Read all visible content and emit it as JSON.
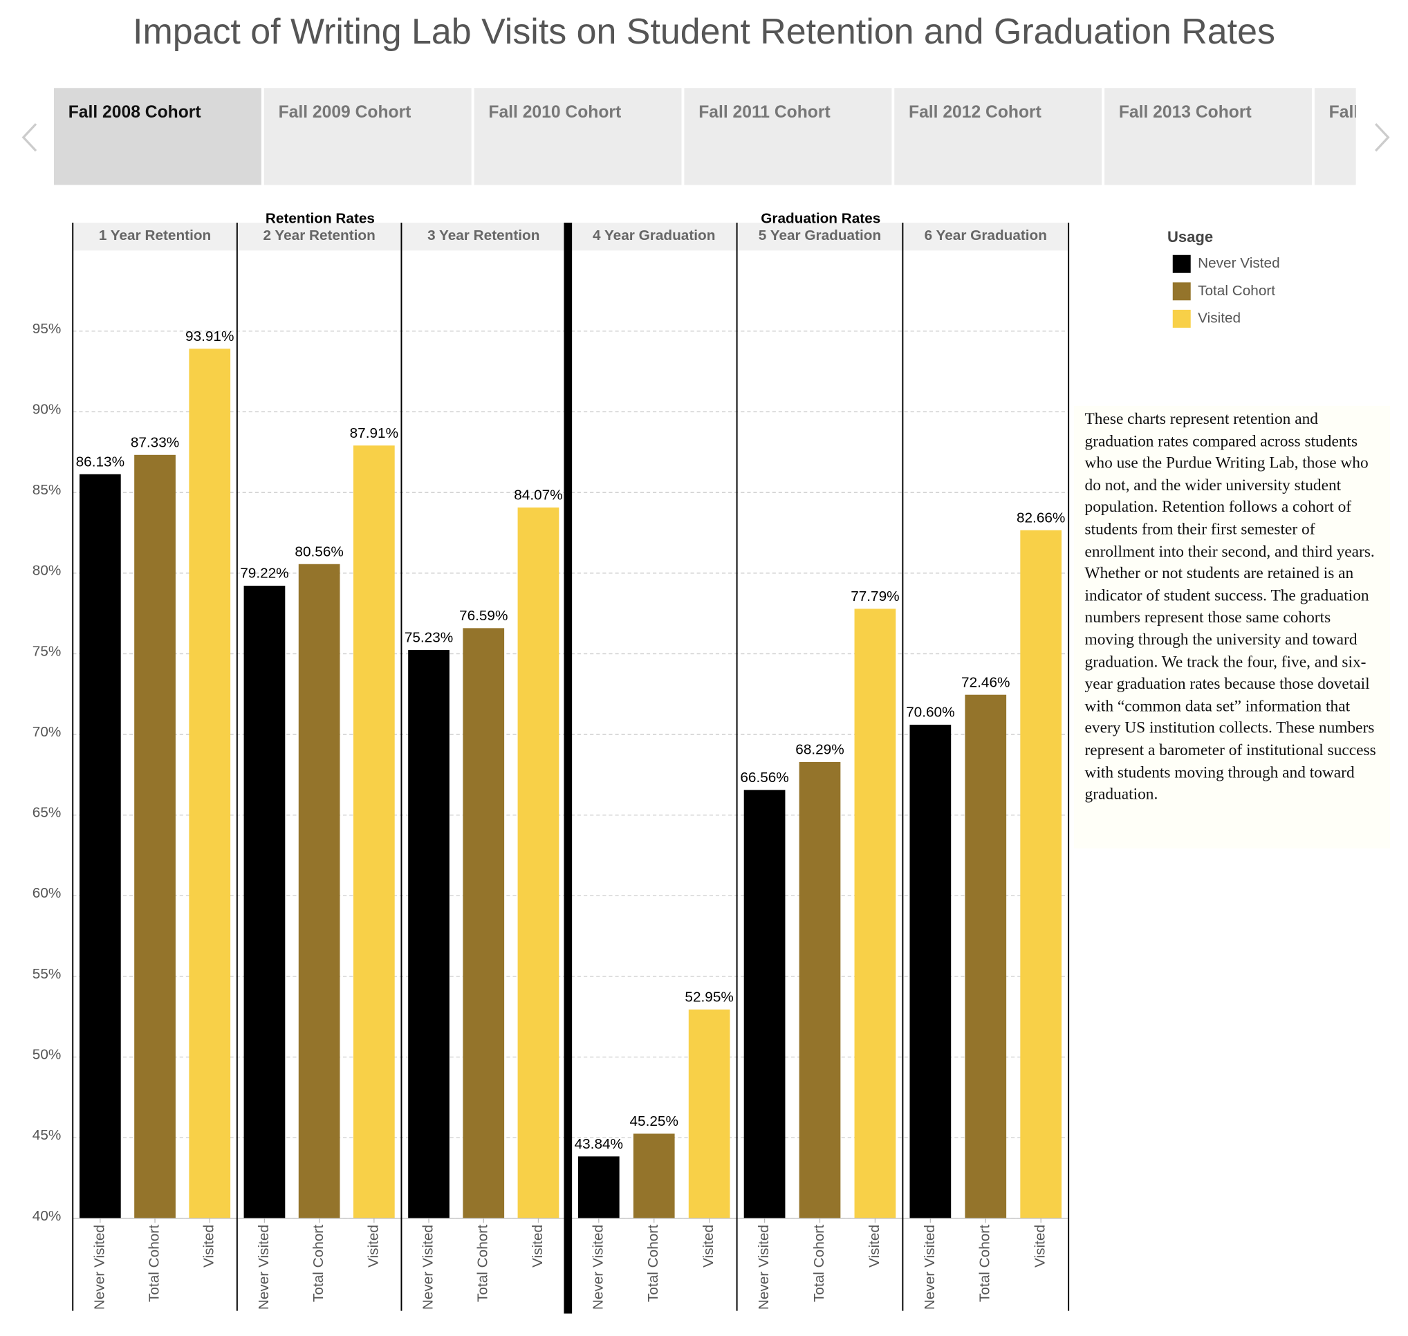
{
  "title": "Impact of Writing Lab Visits on Student Retention and Graduation Rates",
  "tabs": [
    "Fall 2008 Cohort",
    "Fall 2009 Cohort",
    "Fall 2010 Cohort",
    "Fall 2011 Cohort",
    "Fall 2012 Cohort",
    "Fall 2013 Cohort",
    "Fall"
  ],
  "legend": {
    "title": "Usage"
  },
  "description": "These charts represent retention and graduation rates compared across students who use the Purdue Writing Lab, those who do not, and the wider university student population. Retention follows a cohort of students from their first semester of enrollment into their second, and third years. Whether or not students are retained is an indicator of student success. The graduation numbers represent those same cohorts moving through the university and toward graduation. We track the four, five, and six-year graduation rates because those dovetail with “common data set” information that every US institution collects. These numbers represent a barometer of institutional success with students moving through and toward graduation.",
  "chart_data": [
    {
      "type": "bar",
      "title": "Retention Rates",
      "panels": [
        "1 Year Retention",
        "2 Year Retention",
        "3 Year Retention"
      ],
      "categories": [
        "Never Visited",
        "Total Cohort",
        "Visited"
      ],
      "series": [
        {
          "name": "Never Visted",
          "color": "#000000",
          "values": [
            86.13,
            79.22,
            75.23
          ],
          "value_labels": [
            "86.13%",
            "79.22%",
            "75.23%"
          ]
        },
        {
          "name": "Total Cohort",
          "color": "#94742b",
          "values": [
            87.33,
            80.56,
            76.59
          ],
          "value_labels": [
            "87.33%",
            "80.56%",
            "76.59%"
          ]
        },
        {
          "name": "Visited",
          "color": "#f8d048",
          "values": [
            93.91,
            87.91,
            84.07
          ],
          "value_labels": [
            "93.91%",
            "87.91%",
            "84.07%"
          ]
        }
      ],
      "ylim": [
        40,
        100
      ],
      "yticks": [
        {
          "value": 40,
          "label": "40%"
        },
        {
          "value": 45,
          "label": "45%"
        },
        {
          "value": 50,
          "label": "50%"
        },
        {
          "value": 55,
          "label": "55%"
        },
        {
          "value": 60,
          "label": "60%"
        },
        {
          "value": 65,
          "label": "65%"
        },
        {
          "value": 70,
          "label": "70%"
        },
        {
          "value": 75,
          "label": "75%"
        },
        {
          "value": 80,
          "label": "80%"
        },
        {
          "value": 85,
          "label": "85%"
        },
        {
          "value": 90,
          "label": "90%"
        },
        {
          "value": 95,
          "label": "95%"
        }
      ],
      "grid": true
    },
    {
      "type": "bar",
      "title": "Graduation Rates",
      "panels": [
        "4 Year Graduation",
        "5 Year Graduation",
        "6 Year Graduation"
      ],
      "categories": [
        "Never Visited",
        "Total Cohort",
        "Visited"
      ],
      "series": [
        {
          "name": "Never Visted",
          "color": "#000000",
          "values": [
            43.84,
            66.56,
            70.6
          ],
          "value_labels": [
            "43.84%",
            "66.56%",
            "70.60%"
          ]
        },
        {
          "name": "Total Cohort",
          "color": "#94742b",
          "values": [
            45.25,
            68.29,
            72.46
          ],
          "value_labels": [
            "45.25%",
            "68.29%",
            "72.46%"
          ]
        },
        {
          "name": "Visited",
          "color": "#f8d048",
          "values": [
            52.95,
            77.79,
            82.66
          ],
          "value_labels": [
            "52.95%",
            "77.79%",
            "82.66%"
          ]
        }
      ],
      "ylim": [
        40,
        100
      ],
      "yticks": [
        {
          "value": 40,
          "label": "40%"
        },
        {
          "value": 45,
          "label": "45%"
        },
        {
          "value": 50,
          "label": "50%"
        },
        {
          "value": 55,
          "label": "55%"
        },
        {
          "value": 60,
          "label": "60%"
        },
        {
          "value": 65,
          "label": "65%"
        },
        {
          "value": 70,
          "label": "70%"
        },
        {
          "value": 75,
          "label": "75%"
        },
        {
          "value": 80,
          "label": "80%"
        },
        {
          "value": 85,
          "label": "85%"
        },
        {
          "value": 90,
          "label": "90%"
        },
        {
          "value": 95,
          "label": "95%"
        }
      ],
      "grid": true
    }
  ]
}
